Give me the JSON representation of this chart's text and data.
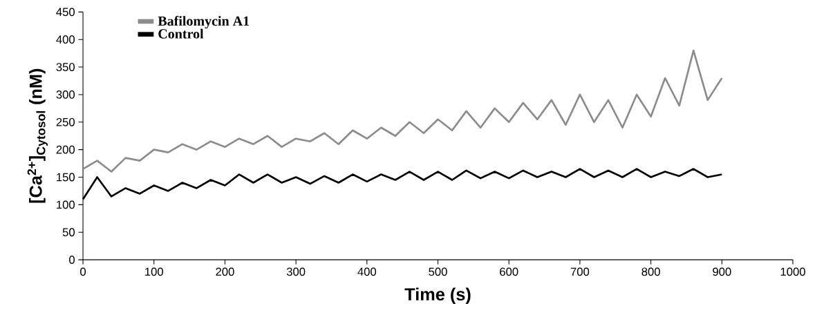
{
  "chart_data": {
    "type": "line",
    "xlabel": "Time (s)",
    "ylabel": "[Ca$^{2+}$]$_{Cytosol}$  (nM)",
    "xlim": [
      0,
      1000
    ],
    "ylim": [
      0,
      450
    ],
    "xticks": [
      0,
      100,
      200,
      300,
      400,
      500,
      600,
      700,
      800,
      900,
      1000
    ],
    "yticks": [
      0,
      50,
      100,
      150,
      200,
      250,
      300,
      350,
      400,
      450
    ],
    "legend": "top left",
    "grid": false,
    "series": [
      {
        "name": "Bafilomycin A1",
        "color": "#8c8c8c",
        "x": [
          0,
          20,
          40,
          60,
          80,
          100,
          120,
          140,
          160,
          180,
          200,
          220,
          240,
          260,
          280,
          300,
          320,
          340,
          360,
          380,
          400,
          420,
          440,
          460,
          480,
          500,
          520,
          540,
          560,
          580,
          600,
          620,
          640,
          660,
          680,
          700,
          720,
          740,
          760,
          780,
          800,
          820,
          840,
          860,
          880,
          900
        ],
        "values": [
          165,
          180,
          160,
          185,
          180,
          200,
          195,
          210,
          200,
          215,
          205,
          220,
          210,
          225,
          205,
          220,
          215,
          230,
          210,
          235,
          220,
          240,
          225,
          250,
          230,
          255,
          235,
          270,
          240,
          275,
          250,
          285,
          255,
          290,
          245,
          300,
          250,
          290,
          240,
          300,
          260,
          330,
          280,
          380,
          290,
          330
        ]
      },
      {
        "name": "Control",
        "color": "#000000",
        "x": [
          0,
          20,
          40,
          60,
          80,
          100,
          120,
          140,
          160,
          180,
          200,
          220,
          240,
          260,
          280,
          300,
          320,
          340,
          360,
          380,
          400,
          420,
          440,
          460,
          480,
          500,
          520,
          540,
          560,
          580,
          600,
          620,
          640,
          660,
          680,
          700,
          720,
          740,
          760,
          780,
          800,
          820,
          840,
          860,
          880,
          900
        ],
        "values": [
          110,
          150,
          115,
          130,
          120,
          135,
          125,
          140,
          130,
          145,
          135,
          155,
          140,
          155,
          140,
          150,
          138,
          152,
          140,
          155,
          142,
          155,
          145,
          160,
          145,
          160,
          145,
          162,
          148,
          160,
          148,
          162,
          150,
          160,
          150,
          165,
          150,
          162,
          150,
          165,
          150,
          160,
          152,
          165,
          150,
          155
        ]
      }
    ]
  }
}
